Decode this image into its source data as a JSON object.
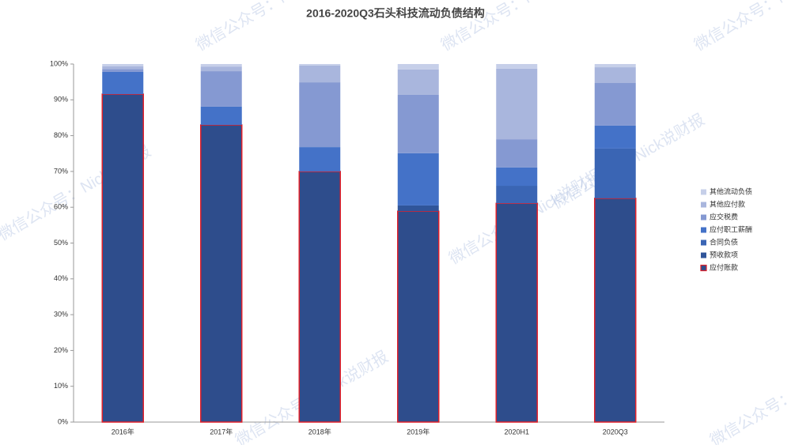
{
  "chart_data": {
    "type": "stacked_bar",
    "title": "2016-2020Q3石头科技流动负债结构",
    "watermark": "微信公众号：Nick说财报",
    "categories": [
      "2016年",
      "2017年",
      "2018年",
      "2019年",
      "2020H1",
      "2020Q3"
    ],
    "ylim": [
      0,
      100
    ],
    "yticks": [
      {
        "value": 0,
        "label": "0%"
      },
      {
        "value": 10,
        "label": "10%"
      },
      {
        "value": 20,
        "label": "20%"
      },
      {
        "value": 30,
        "label": "30%"
      },
      {
        "value": 40,
        "label": "40%"
      },
      {
        "value": 50,
        "label": "50%"
      },
      {
        "value": 60,
        "label": "60%"
      },
      {
        "value": 70,
        "label": "70%"
      },
      {
        "value": 80,
        "label": "80%"
      },
      {
        "value": 90,
        "label": "90%"
      },
      {
        "value": 100,
        "label": "100%"
      }
    ],
    "grid": false,
    "legend": "right",
    "series": [
      {
        "name": "应付账款",
        "color": "#2e4d8c",
        "edgecolor": "#e0202a",
        "values": [
          91.6,
          83.0,
          70.0,
          58.9,
          61.1,
          62.5
        ]
      },
      {
        "name": "预收款项",
        "color": "#30559a",
        "values": [
          0,
          0,
          0,
          1.6,
          0,
          0
        ]
      },
      {
        "name": "合同负债",
        "color": "#3a65b4",
        "values": [
          0,
          0,
          0,
          0,
          4.9,
          13.9
        ]
      },
      {
        "name": "应付职工薪酬",
        "color": "#4472c8",
        "values": [
          6.2,
          5.1,
          6.8,
          14.6,
          5.1,
          6.4
        ]
      },
      {
        "name": "应交税费",
        "color": "#8599d2",
        "values": [
          0.8,
          9.9,
          18.1,
          16.3,
          7.9,
          11.9
        ]
      },
      {
        "name": "其他应付款",
        "color": "#a9b6dd",
        "values": [
          0.8,
          1.3,
          4.7,
          7.1,
          19.7,
          4.4
        ]
      },
      {
        "name": "其他流动负债",
        "color": "#c6cfe9",
        "values": [
          0.6,
          0.7,
          0.4,
          1.5,
          1.3,
          0.9
        ]
      }
    ]
  }
}
